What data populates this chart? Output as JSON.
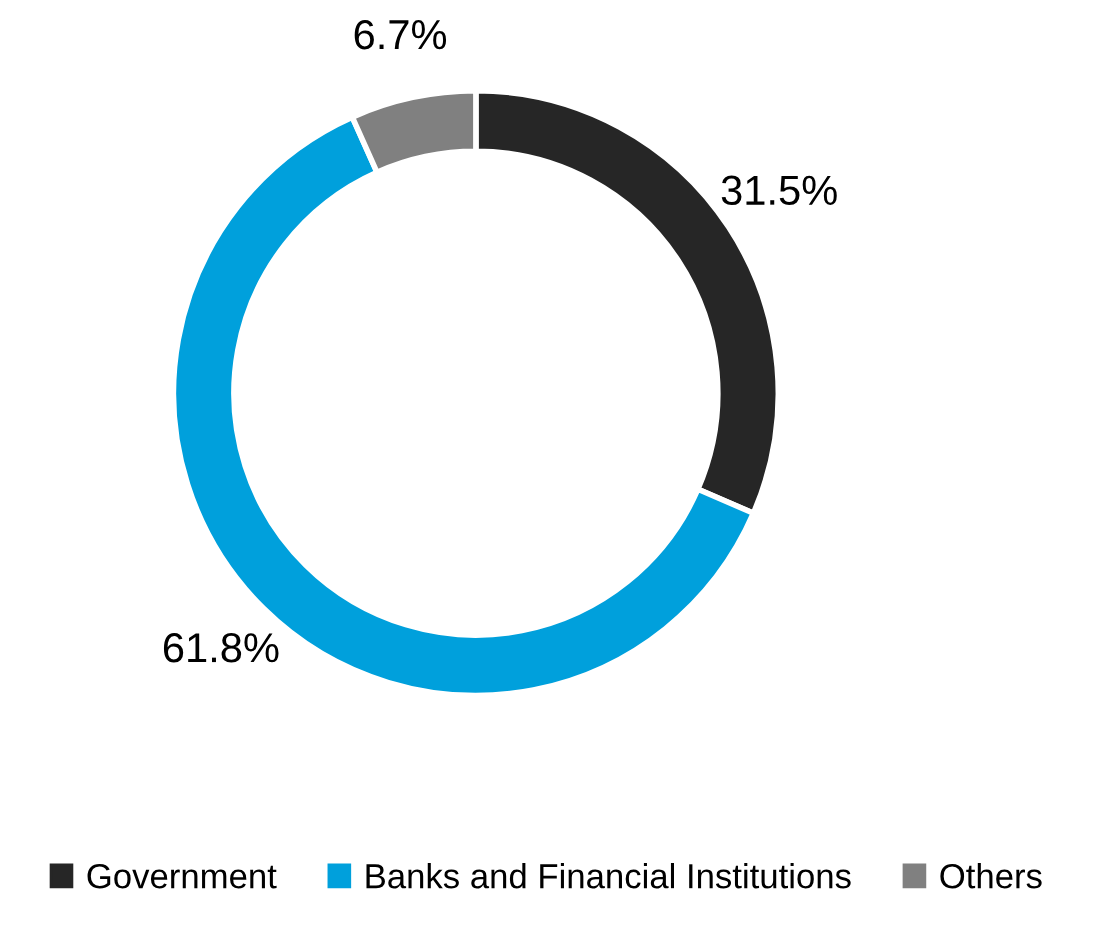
{
  "chart_data": {
    "type": "donut",
    "categories": [
      "Government",
      "Banks and Financial Institutions",
      "Others"
    ],
    "values": [
      31.5,
      61.8,
      6.7
    ],
    "colors": [
      "#262626",
      "#00a0dc",
      "#808080"
    ],
    "value_labels": [
      "31.5%",
      "61.8%",
      "6.7%"
    ],
    "legend": "bottom"
  }
}
